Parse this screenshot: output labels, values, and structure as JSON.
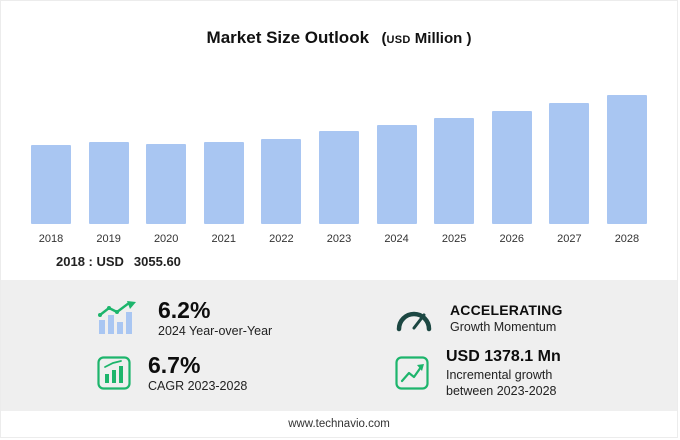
{
  "title": {
    "main": "Market Size Outlook",
    "unit_open": "(",
    "unit_currency": "USD",
    "unit_word": "Million",
    "unit_close": ")"
  },
  "chart_data": {
    "type": "bar",
    "title": "Market Size Outlook (USD Million)",
    "categories": [
      "2018",
      "2019",
      "2020",
      "2021",
      "2022",
      "2023",
      "2024",
      "2025",
      "2026",
      "2027",
      "2028"
    ],
    "values": [
      3055.6,
      3160.0,
      3085.0,
      3165.0,
      3290.0,
      3598.2,
      3821.3,
      4069.7,
      4346.4,
      4650.7,
      4976.3
    ],
    "xlabel": "",
    "ylabel": "",
    "ylim": [
      0,
      5200
    ],
    "grid": false,
    "legend": false
  },
  "annotation": {
    "label": "2018 : USD",
    "value": "3055.60"
  },
  "stats": [
    {
      "value": "6.2%",
      "label": "2024 Year-over-Year",
      "icon": "bars-growth-arrow-icon"
    },
    {
      "value": "ACCELERATING",
      "label": "Growth Momentum",
      "icon": "gauge-icon"
    },
    {
      "value": "6.7%",
      "label": "CAGR 2023-2028",
      "icon": "framed-bar-chart-icon"
    },
    {
      "value": "USD 1378.1 Mn",
      "label": "Incremental growth between 2023-2028",
      "icon": "framed-line-chart-icon"
    }
  ],
  "footer": {
    "url": "www.technavio.com"
  },
  "colors": {
    "bar": "#a9c6f2",
    "green": "#1db56c",
    "gauge": "#1c4742",
    "panel": "#efefef"
  }
}
